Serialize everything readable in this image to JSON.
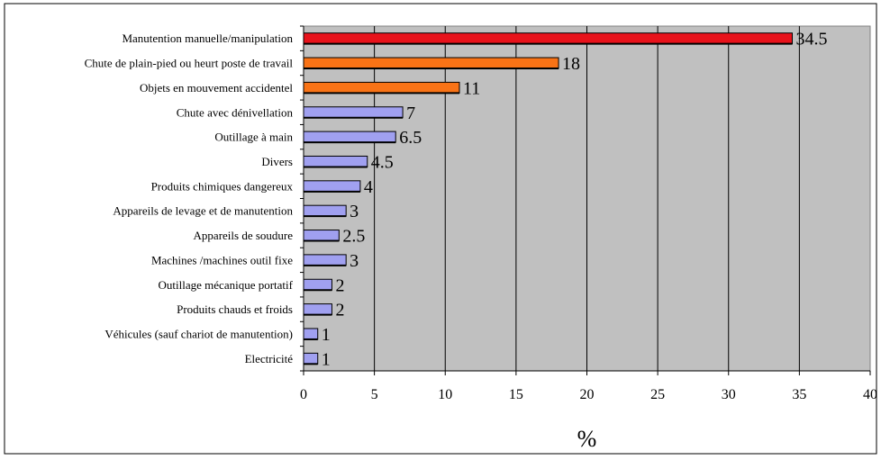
{
  "chart_data": {
    "type": "bar",
    "orientation": "horizontal",
    "categories": [
      "Manutention manuelle/manipulation",
      "Chute de plain-pied ou heurt poste de travail",
      "Objets en mouvement accidentel",
      "Chute avec dénivellation",
      "Outillage à main",
      "Divers",
      "Produits chimiques dangereux",
      "Appareils de levage et de manutention",
      "Appareils de soudure",
      "Machines /machines outil fixe",
      "Outillage mécanique portatif",
      "Produits chauds et froids",
      "Véhicules (sauf chariot de manutention)",
      "Electricité"
    ],
    "values": [
      34.5,
      18,
      11,
      7,
      6.5,
      4.5,
      4,
      3,
      2.5,
      3,
      2,
      2,
      1,
      1
    ],
    "data_labels": [
      "34.5",
      "18",
      "11",
      "7",
      "6.5",
      "4.5",
      "4",
      "3",
      "2.5",
      "3",
      "2",
      "2",
      "1",
      "1"
    ],
    "bar_colors": [
      "#e8121b",
      "#f97316",
      "#f97316",
      "#a0a0f0",
      "#a0a0f0",
      "#a0a0f0",
      "#a0a0f0",
      "#a0a0f0",
      "#a0a0f0",
      "#a0a0f0",
      "#a0a0f0",
      "#a0a0f0",
      "#a0a0f0",
      "#a0a0f0"
    ],
    "xlabel": "%",
    "ylabel": "",
    "xlim": [
      0,
      40
    ],
    "xticks": [
      "0",
      "5",
      "10",
      "15",
      "20",
      "25",
      "30",
      "35",
      "40"
    ],
    "grid": "vertical",
    "legend": "none",
    "plot_background": "#c0c0c0"
  }
}
